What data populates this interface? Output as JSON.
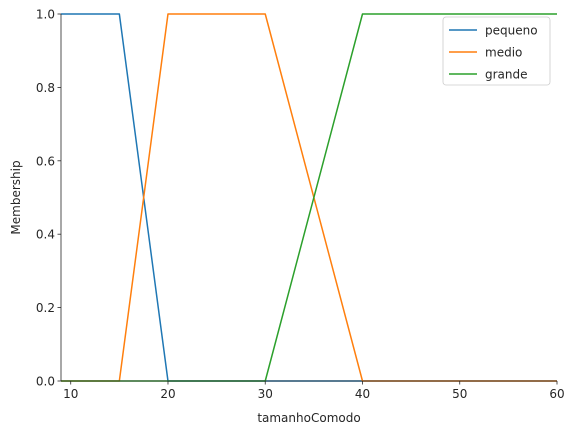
{
  "chart_data": {
    "type": "line",
    "title": "",
    "xlabel": "tamanhoComodo",
    "ylabel": "Membership",
    "xlim": [
      9,
      60
    ],
    "ylim": [
      0,
      1.0
    ],
    "xticks": [
      10,
      20,
      30,
      40,
      50,
      60
    ],
    "yticks": [
      0.0,
      0.2,
      0.4,
      0.6,
      0.8,
      1.0
    ],
    "xtick_labels": [
      "10",
      "20",
      "30",
      "40",
      "50",
      "60"
    ],
    "ytick_labels": [
      "0.0",
      "0.2",
      "0.4",
      "0.6",
      "0.8",
      "1.0"
    ],
    "grid": false,
    "legend_position": "top-right",
    "series": [
      {
        "name": "pequeno",
        "color": "#1f77b4",
        "x": [
          9,
          15,
          20,
          60
        ],
        "y": [
          1,
          1,
          0,
          0
        ]
      },
      {
        "name": "medio",
        "color": "#ff7f0e",
        "x": [
          9,
          15,
          20,
          30,
          40,
          60
        ],
        "y": [
          0,
          0,
          1,
          1,
          0,
          0
        ]
      },
      {
        "name": "grande",
        "color": "#2ca02c",
        "x": [
          9,
          30,
          40,
          60
        ],
        "y": [
          0,
          0,
          1,
          1
        ]
      }
    ]
  }
}
